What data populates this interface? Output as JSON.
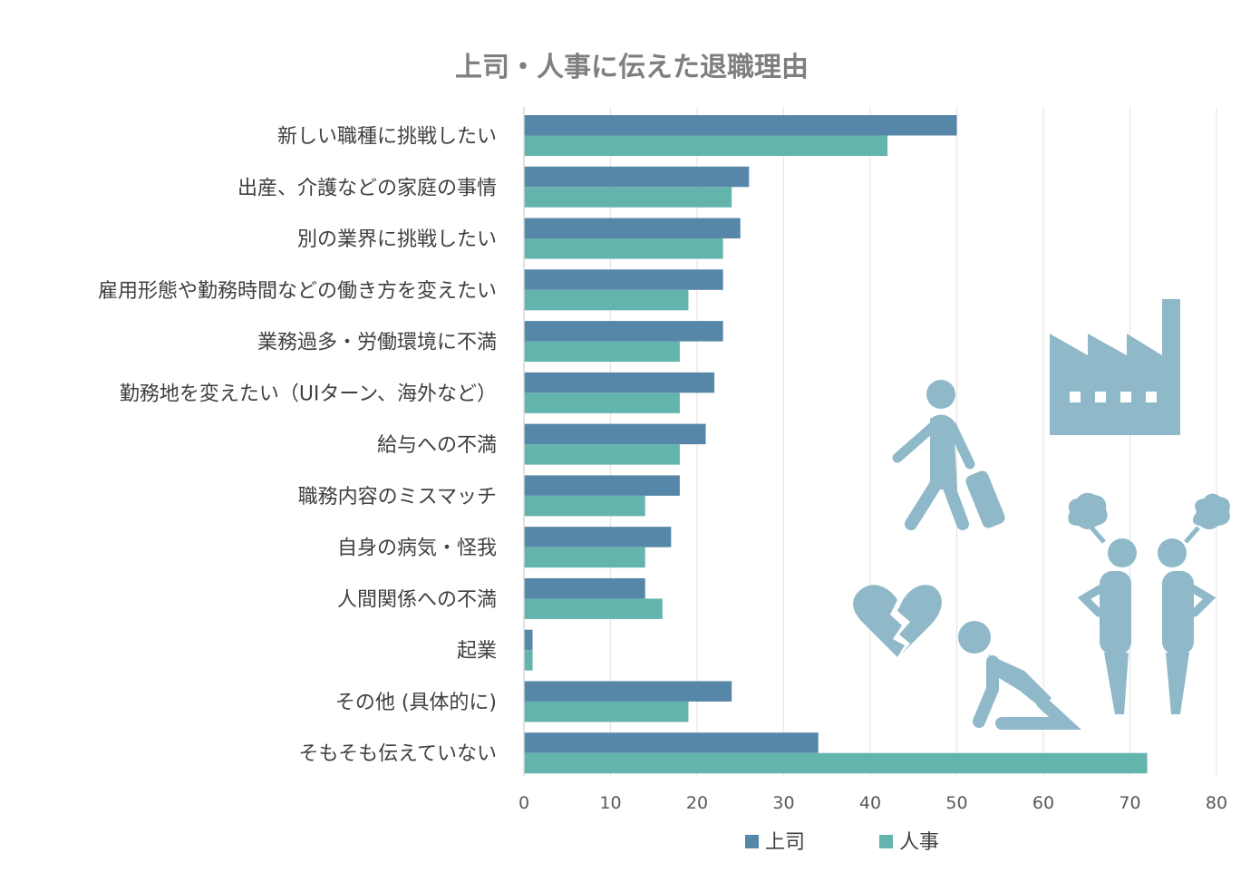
{
  "chart_data": {
    "type": "bar",
    "orientation": "horizontal",
    "title": "上司・人事に伝えた退職理由",
    "categories": [
      "新しい職種に挑戦したい",
      "出産、介護などの家庭の事情",
      "別の業界に挑戦したい",
      "雇用形態や勤務時間などの働き方を変えたい",
      "業務過多・労働環境に不満",
      "勤務地を変えたい（UIターン、海外など）",
      "給与への不満",
      "職務内容のミスマッチ",
      "自身の病気・怪我",
      "人間関係への不満",
      "起業",
      "その他 (具体的に)",
      "そもそも伝えていない"
    ],
    "series": [
      {
        "name": "上司",
        "color": "#5787a8",
        "values": [
          50,
          26,
          25,
          23,
          23,
          22,
          21,
          18,
          17,
          14,
          1,
          24,
          34
        ]
      },
      {
        "name": "人事",
        "color": "#64b4ae",
        "values": [
          42,
          24,
          23,
          19,
          18,
          18,
          18,
          14,
          14,
          16,
          1,
          19,
          72
        ]
      }
    ],
    "xlim": [
      0,
      80
    ],
    "xticks": [
      0,
      10,
      20,
      30,
      40,
      50,
      60,
      70,
      80
    ],
    "grid": true,
    "legend_position": "bottom",
    "decoration_color": "#8fb9c8",
    "decoration_icons": [
      "factory-icon",
      "walking-traveler-icon",
      "broken-heart-icon",
      "kneeling-person-icon",
      "arguing-people-icon"
    ]
  }
}
